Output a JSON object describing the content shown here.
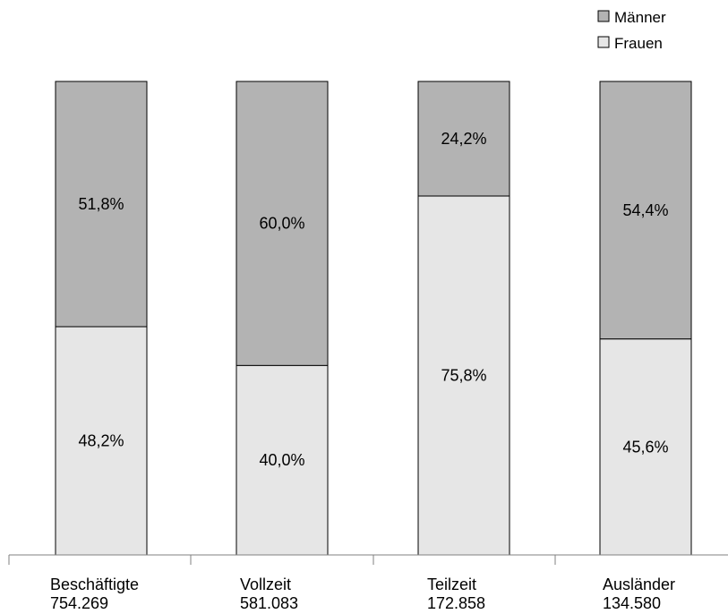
{
  "colors": {
    "maenner": "#b3b3b3",
    "frauen": "#e6e6e6",
    "stroke": "#000000",
    "axis": "#808080"
  },
  "legend": {
    "maenner": "Männer",
    "frauen": "Frauen"
  },
  "chart_data": {
    "type": "bar",
    "stacked": true,
    "percent_stacked": true,
    "categories": [
      "Beschäftigte",
      "Vollzeit",
      "Teilzeit",
      "Ausländer"
    ],
    "category_totals": [
      "754.269",
      "581.083",
      "172.858",
      "134.580"
    ],
    "series": [
      {
        "name": "Frauen",
        "values": [
          48.2,
          40.0,
          75.8,
          45.6
        ],
        "labels": [
          "48,2%",
          "40,0%",
          "75,8%",
          "45,6%"
        ]
      },
      {
        "name": "Männer",
        "values": [
          51.8,
          60.0,
          24.2,
          54.4
        ],
        "labels": [
          "51,8%",
          "60,0%",
          "24,2%",
          "54,4%"
        ]
      }
    ],
    "ylim": [
      0,
      100
    ],
    "grid": false,
    "legend_position": "top-right"
  }
}
